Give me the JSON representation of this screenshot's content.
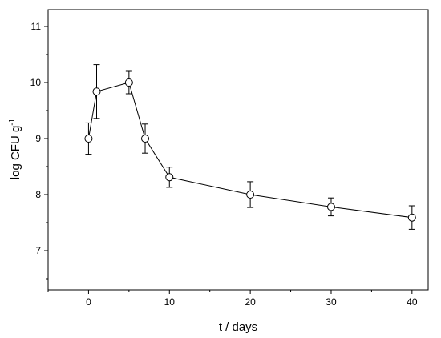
{
  "chart_data": {
    "type": "line",
    "xlabel": "t / days",
    "ylabel": "log CFU  g",
    "ylabel_superscript": "-1",
    "xlim": [
      -5,
      42
    ],
    "ylim": [
      6.3,
      11.3
    ],
    "x_ticks": [
      0,
      10,
      20,
      30,
      40
    ],
    "y_ticks": [
      7,
      8,
      9,
      10,
      11
    ],
    "grid": false,
    "legend": "none",
    "series": [
      {
        "marker": "open-circle",
        "x": [
          0,
          1,
          5,
          7,
          10,
          20,
          30,
          40
        ],
        "y": [
          9.0,
          9.84,
          10.0,
          9.0,
          8.31,
          8.0,
          7.78,
          7.59
        ],
        "y_err": [
          0.28,
          0.48,
          0.2,
          0.26,
          0.18,
          0.23,
          0.16,
          0.21
        ]
      }
    ]
  }
}
